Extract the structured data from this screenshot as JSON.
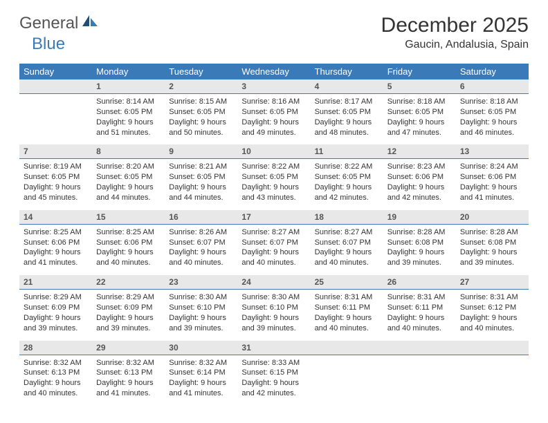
{
  "brand": {
    "part1": "General",
    "part2": "Blue"
  },
  "title": "December 2025",
  "location": "Gaucin, Andalusia, Spain",
  "colors": {
    "header_bg": "#3a7ab8",
    "header_text": "#ffffff",
    "daynum_bg": "#e8e8e8",
    "daynum_border": "#3a7ab8",
    "body_text": "#333333",
    "page_bg": "#ffffff"
  },
  "dayNames": [
    "Sunday",
    "Monday",
    "Tuesday",
    "Wednesday",
    "Thursday",
    "Friday",
    "Saturday"
  ],
  "weeks": [
    {
      "nums": [
        "",
        "1",
        "2",
        "3",
        "4",
        "5",
        "6"
      ],
      "cells": [
        null,
        {
          "sunrise": "Sunrise: 8:14 AM",
          "sunset": "Sunset: 6:05 PM",
          "daylight": "Daylight: 9 hours and 51 minutes."
        },
        {
          "sunrise": "Sunrise: 8:15 AM",
          "sunset": "Sunset: 6:05 PM",
          "daylight": "Daylight: 9 hours and 50 minutes."
        },
        {
          "sunrise": "Sunrise: 8:16 AM",
          "sunset": "Sunset: 6:05 PM",
          "daylight": "Daylight: 9 hours and 49 minutes."
        },
        {
          "sunrise": "Sunrise: 8:17 AM",
          "sunset": "Sunset: 6:05 PM",
          "daylight": "Daylight: 9 hours and 48 minutes."
        },
        {
          "sunrise": "Sunrise: 8:18 AM",
          "sunset": "Sunset: 6:05 PM",
          "daylight": "Daylight: 9 hours and 47 minutes."
        },
        {
          "sunrise": "Sunrise: 8:18 AM",
          "sunset": "Sunset: 6:05 PM",
          "daylight": "Daylight: 9 hours and 46 minutes."
        }
      ]
    },
    {
      "nums": [
        "7",
        "8",
        "9",
        "10",
        "11",
        "12",
        "13"
      ],
      "cells": [
        {
          "sunrise": "Sunrise: 8:19 AM",
          "sunset": "Sunset: 6:05 PM",
          "daylight": "Daylight: 9 hours and 45 minutes."
        },
        {
          "sunrise": "Sunrise: 8:20 AM",
          "sunset": "Sunset: 6:05 PM",
          "daylight": "Daylight: 9 hours and 44 minutes."
        },
        {
          "sunrise": "Sunrise: 8:21 AM",
          "sunset": "Sunset: 6:05 PM",
          "daylight": "Daylight: 9 hours and 44 minutes."
        },
        {
          "sunrise": "Sunrise: 8:22 AM",
          "sunset": "Sunset: 6:05 PM",
          "daylight": "Daylight: 9 hours and 43 minutes."
        },
        {
          "sunrise": "Sunrise: 8:22 AM",
          "sunset": "Sunset: 6:05 PM",
          "daylight": "Daylight: 9 hours and 42 minutes."
        },
        {
          "sunrise": "Sunrise: 8:23 AM",
          "sunset": "Sunset: 6:06 PM",
          "daylight": "Daylight: 9 hours and 42 minutes."
        },
        {
          "sunrise": "Sunrise: 8:24 AM",
          "sunset": "Sunset: 6:06 PM",
          "daylight": "Daylight: 9 hours and 41 minutes."
        }
      ]
    },
    {
      "nums": [
        "14",
        "15",
        "16",
        "17",
        "18",
        "19",
        "20"
      ],
      "cells": [
        {
          "sunrise": "Sunrise: 8:25 AM",
          "sunset": "Sunset: 6:06 PM",
          "daylight": "Daylight: 9 hours and 41 minutes."
        },
        {
          "sunrise": "Sunrise: 8:25 AM",
          "sunset": "Sunset: 6:06 PM",
          "daylight": "Daylight: 9 hours and 40 minutes."
        },
        {
          "sunrise": "Sunrise: 8:26 AM",
          "sunset": "Sunset: 6:07 PM",
          "daylight": "Daylight: 9 hours and 40 minutes."
        },
        {
          "sunrise": "Sunrise: 8:27 AM",
          "sunset": "Sunset: 6:07 PM",
          "daylight": "Daylight: 9 hours and 40 minutes."
        },
        {
          "sunrise": "Sunrise: 8:27 AM",
          "sunset": "Sunset: 6:07 PM",
          "daylight": "Daylight: 9 hours and 40 minutes."
        },
        {
          "sunrise": "Sunrise: 8:28 AM",
          "sunset": "Sunset: 6:08 PM",
          "daylight": "Daylight: 9 hours and 39 minutes."
        },
        {
          "sunrise": "Sunrise: 8:28 AM",
          "sunset": "Sunset: 6:08 PM",
          "daylight": "Daylight: 9 hours and 39 minutes."
        }
      ]
    },
    {
      "nums": [
        "21",
        "22",
        "23",
        "24",
        "25",
        "26",
        "27"
      ],
      "cells": [
        {
          "sunrise": "Sunrise: 8:29 AM",
          "sunset": "Sunset: 6:09 PM",
          "daylight": "Daylight: 9 hours and 39 minutes."
        },
        {
          "sunrise": "Sunrise: 8:29 AM",
          "sunset": "Sunset: 6:09 PM",
          "daylight": "Daylight: 9 hours and 39 minutes."
        },
        {
          "sunrise": "Sunrise: 8:30 AM",
          "sunset": "Sunset: 6:10 PM",
          "daylight": "Daylight: 9 hours and 39 minutes."
        },
        {
          "sunrise": "Sunrise: 8:30 AM",
          "sunset": "Sunset: 6:10 PM",
          "daylight": "Daylight: 9 hours and 39 minutes."
        },
        {
          "sunrise": "Sunrise: 8:31 AM",
          "sunset": "Sunset: 6:11 PM",
          "daylight": "Daylight: 9 hours and 40 minutes."
        },
        {
          "sunrise": "Sunrise: 8:31 AM",
          "sunset": "Sunset: 6:11 PM",
          "daylight": "Daylight: 9 hours and 40 minutes."
        },
        {
          "sunrise": "Sunrise: 8:31 AM",
          "sunset": "Sunset: 6:12 PM",
          "daylight": "Daylight: 9 hours and 40 minutes."
        }
      ]
    },
    {
      "nums": [
        "28",
        "29",
        "30",
        "31",
        "",
        "",
        ""
      ],
      "cells": [
        {
          "sunrise": "Sunrise: 8:32 AM",
          "sunset": "Sunset: 6:13 PM",
          "daylight": "Daylight: 9 hours and 40 minutes."
        },
        {
          "sunrise": "Sunrise: 8:32 AM",
          "sunset": "Sunset: 6:13 PM",
          "daylight": "Daylight: 9 hours and 41 minutes."
        },
        {
          "sunrise": "Sunrise: 8:32 AM",
          "sunset": "Sunset: 6:14 PM",
          "daylight": "Daylight: 9 hours and 41 minutes."
        },
        {
          "sunrise": "Sunrise: 8:33 AM",
          "sunset": "Sunset: 6:15 PM",
          "daylight": "Daylight: 9 hours and 42 minutes."
        },
        null,
        null,
        null
      ]
    }
  ]
}
